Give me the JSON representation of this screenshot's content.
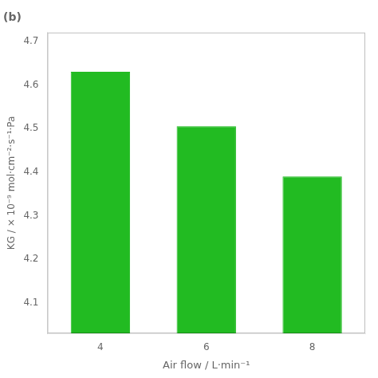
{
  "chart_data": {
    "type": "bar",
    "title": "(b)",
    "categories": [
      "4",
      "6",
      "8"
    ],
    "values": [
      4.63,
      4.505,
      4.39
    ],
    "color": "#22bb22",
    "x_label": "Air flow / L·min⁻¹",
    "y_label": "KG / × 10⁻⁹ mol·cm⁻²·s⁻¹·Pa",
    "ylim": [
      4.03,
      4.72
    ],
    "yticks": [
      4.1,
      4.2,
      4.3,
      4.4,
      4.5,
      4.6,
      4.7
    ],
    "grid": false
  }
}
